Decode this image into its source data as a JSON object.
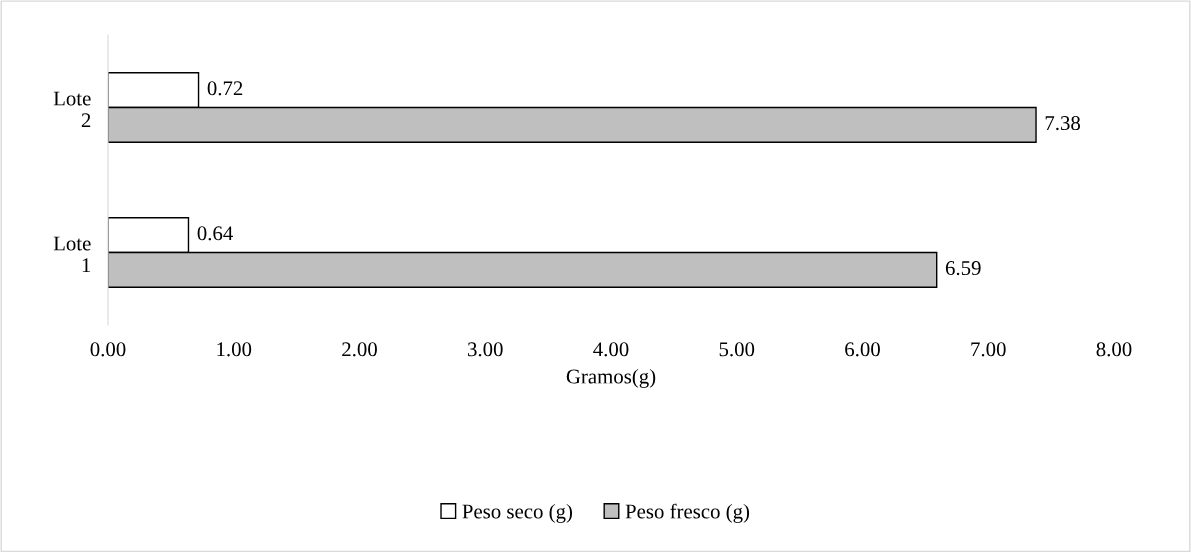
{
  "chart_data": {
    "type": "bar",
    "orientation": "horizontal",
    "xlabel": "Gramos(g)",
    "categories": [
      "Lote 2",
      "Lote 1"
    ],
    "series": [
      {
        "name": "Peso seco (g)",
        "color": "#ffffff",
        "values": [
          0.72,
          0.64
        ]
      },
      {
        "name": "Peso fresco (g)",
        "color": "#bfbfbf",
        "values": [
          7.38,
          6.59
        ]
      }
    ],
    "xlim": [
      0,
      8
    ],
    "xticks": [
      {
        "value": 0,
        "label": "0.00"
      },
      {
        "value": 1,
        "label": "1.00"
      },
      {
        "value": 2,
        "label": "2.00"
      },
      {
        "value": 3,
        "label": "3.00"
      },
      {
        "value": 4,
        "label": "4.00"
      },
      {
        "value": 5,
        "label": "5.00"
      },
      {
        "value": 6,
        "label": "6.00"
      },
      {
        "value": 7,
        "label": "7.00"
      },
      {
        "value": 8,
        "label": "8.00"
      }
    ],
    "data_labels": true,
    "grid": false,
    "legend": "bottom"
  }
}
